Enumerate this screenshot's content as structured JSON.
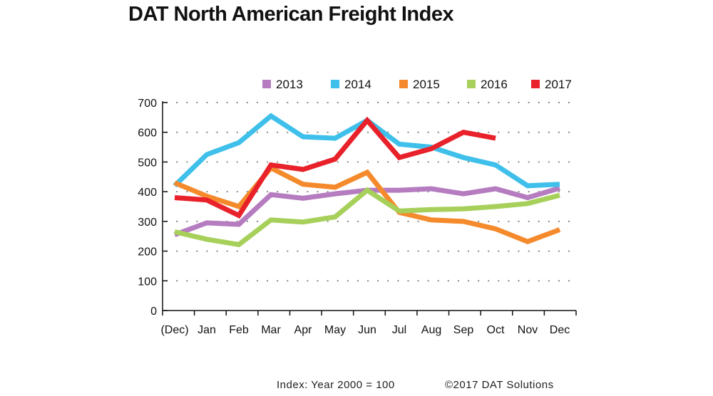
{
  "chart_data": {
    "type": "line",
    "title": "DAT North American Freight Index",
    "xlabel": "",
    "ylabel": "",
    "categories": [
      "(Dec)",
      "Jan",
      "Feb",
      "Mar",
      "Apr",
      "May",
      "Jun",
      "Jul",
      "Aug",
      "Sep",
      "Oct",
      "Nov",
      "Dec"
    ],
    "ylim": [
      0,
      700
    ],
    "yticks": [
      0,
      100,
      200,
      300,
      400,
      500,
      600,
      700
    ],
    "grid": "dotted horizontal",
    "legend_position": "top",
    "series": [
      {
        "name": "2013",
        "color": "#b57cc0",
        "values": [
          255,
          295,
          290,
          390,
          378,
          393,
          405,
          405,
          410,
          393,
          410,
          380,
          412
        ]
      },
      {
        "name": "2014",
        "color": "#3fc0ea",
        "values": [
          420,
          525,
          565,
          655,
          585,
          580,
          640,
          560,
          550,
          515,
          490,
          420,
          425
        ]
      },
      {
        "name": "2015",
        "color": "#f58a2c",
        "values": [
          430,
          385,
          350,
          480,
          425,
          415,
          465,
          330,
          305,
          300,
          275,
          232,
          272
        ]
      },
      {
        "name": "2016",
        "color": "#a6d05a",
        "values": [
          265,
          240,
          222,
          305,
          298,
          315,
          405,
          335,
          340,
          342,
          350,
          360,
          388
        ]
      },
      {
        "name": "2017",
        "color": "#e8212a",
        "values": [
          380,
          372,
          320,
          490,
          475,
          510,
          640,
          515,
          545,
          600,
          580,
          null,
          null
        ]
      }
    ]
  },
  "footer": {
    "index_note": "Index: Year 2000 = 100",
    "copyright": "©2017 DAT Solutions"
  }
}
